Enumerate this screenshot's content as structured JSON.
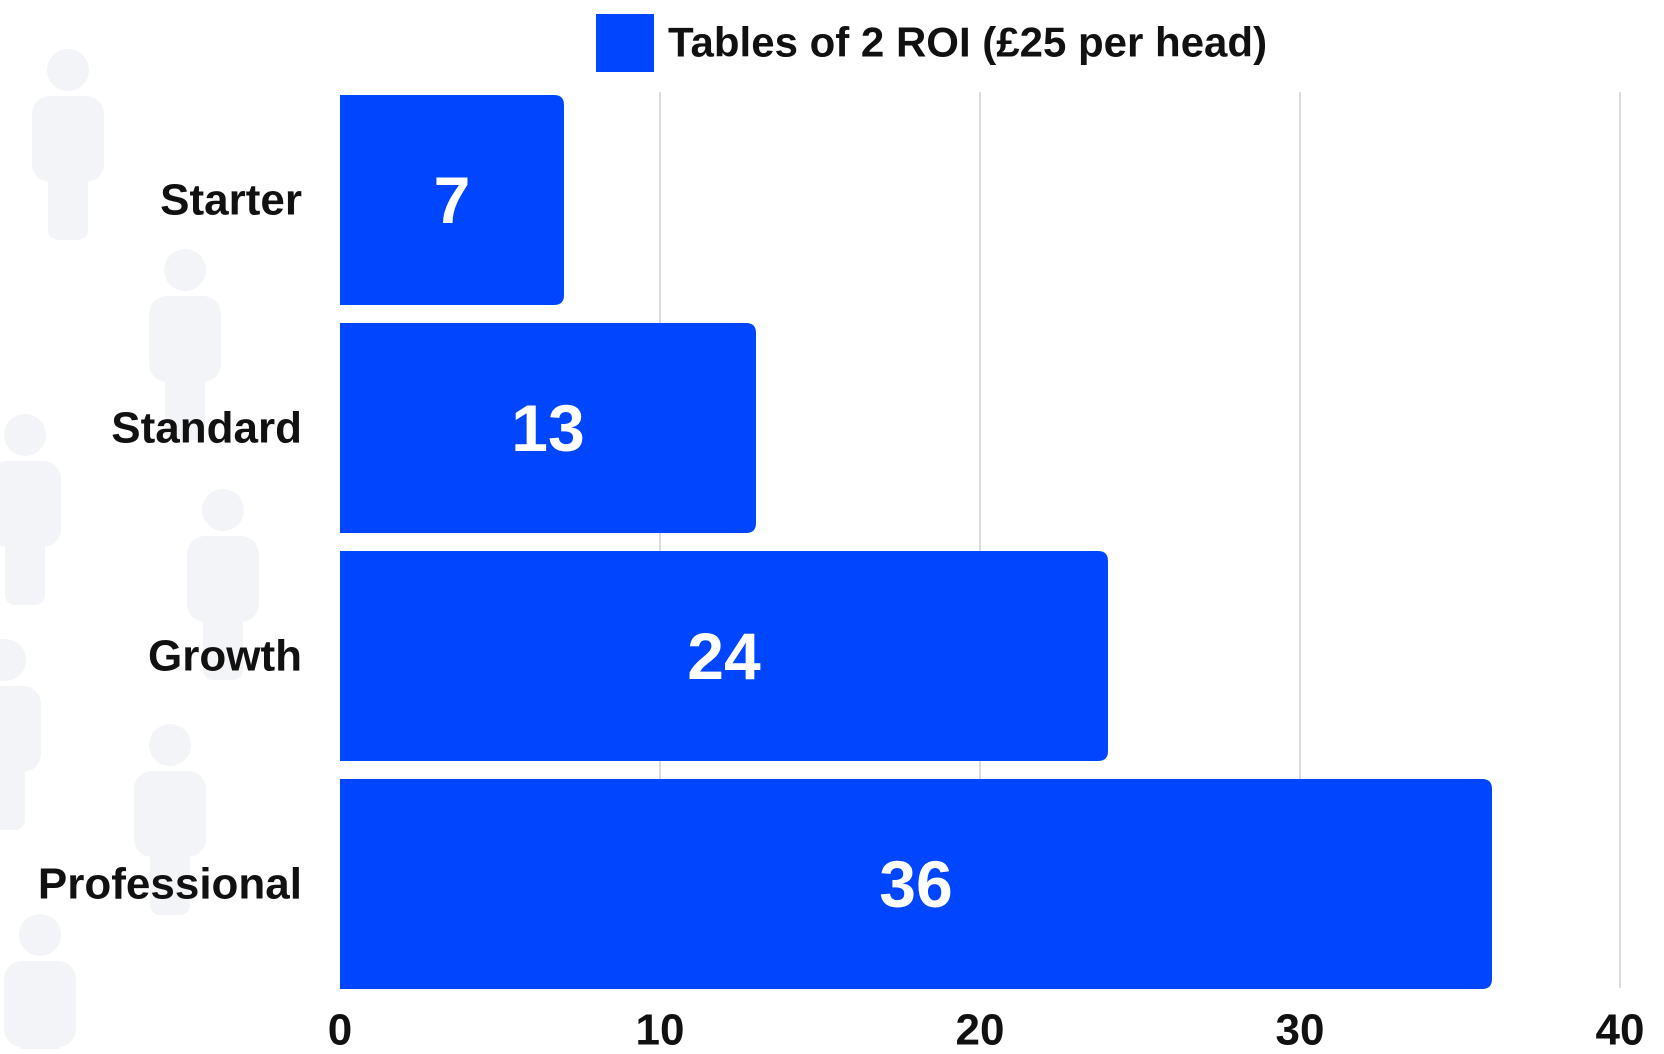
{
  "colors": {
    "bar": "#0046ff",
    "bar_label": "#ffffff",
    "grid": "#d0d0d0",
    "text": "#111111",
    "silhouette": "#f3f4f8"
  },
  "legend": {
    "label": "Tables of 2 ROI (£25 per head)",
    "placement": "top-right"
  },
  "background_icons": "person-silhouette-icon",
  "chart_data": {
    "type": "bar",
    "orientation": "horizontal",
    "categories": [
      "Starter",
      "Standard",
      "Growth",
      "Professional"
    ],
    "series": [
      {
        "name": "Tables of 2 ROI (£25 per head)",
        "values": [
          7,
          13,
          24,
          36
        ]
      }
    ],
    "data_labels": [
      "7",
      "13",
      "24",
      "36"
    ],
    "x_ticks": [
      "0",
      "10",
      "20",
      "30",
      "40"
    ],
    "xlim": [
      0,
      40
    ],
    "grid": true,
    "title": "",
    "xlabel": "",
    "ylabel": ""
  }
}
